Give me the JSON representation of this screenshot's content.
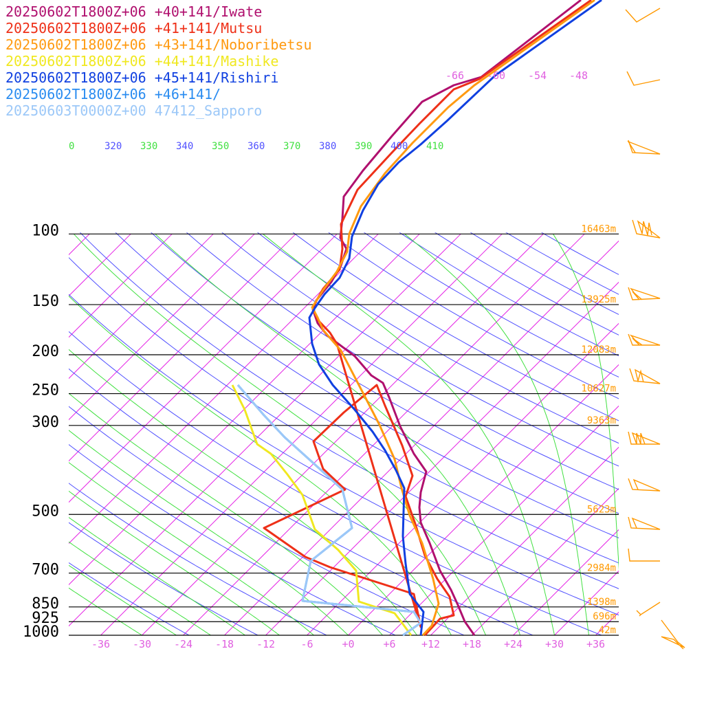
{
  "colors": {
    "isotherm": "#e000e0",
    "dry_adiabat": "#5050ff",
    "moist_adiabat": "#40e040",
    "height_label": "#ff9900",
    "wind_barb": "#ff9900",
    "temp_tick": "#e060e0",
    "isobar": "#000000"
  },
  "chart_data": {
    "type": "line",
    "title": "",
    "xlabel": "",
    "ylabel": "",
    "x_tick_labels": [
      "-36",
      "-30",
      "-24",
      "-18",
      "-12",
      "-6",
      "+0",
      "+6",
      "+12",
      "+18",
      "+24",
      "+30",
      "+36"
    ],
    "x_tick_values": [
      -36,
      -30,
      -24,
      -18,
      -12,
      -6,
      0,
      6,
      12,
      18,
      24,
      30,
      36
    ],
    "pressure_levels": [
      {
        "p": 100,
        "label": "100",
        "height": "16463m"
      },
      {
        "p": 150,
        "label": "150",
        "height": "13925m"
      },
      {
        "p": 200,
        "label": "200",
        "height": "12083m"
      },
      {
        "p": 250,
        "label": "250",
        "height": "10627m"
      },
      {
        "p": 300,
        "label": "300",
        "height": "9363m"
      },
      {
        "p": 500,
        "label": "500",
        "height": "5623m"
      },
      {
        "p": 700,
        "label": "700",
        "height": "2984m"
      },
      {
        "p": 850,
        "label": "850",
        "height": "1398m"
      },
      {
        "p": 925,
        "label": "925",
        "height": "696m"
      },
      {
        "p": 1000,
        "label": "1000",
        "height": "42m"
      }
    ],
    "theta_labels": [
      {
        "text": "0",
        "color": "#40e040"
      },
      {
        "text": "320",
        "color": "#5050ff"
      },
      {
        "text": "330",
        "color": "#40e040"
      },
      {
        "text": "340",
        "color": "#5050ff"
      },
      {
        "text": "350",
        "color": "#40e040"
      },
      {
        "text": "360",
        "color": "#5050ff"
      },
      {
        "text": "370",
        "color": "#40e040"
      },
      {
        "text": "380",
        "color": "#5050ff"
      },
      {
        "text": "390",
        "color": "#40e040"
      },
      {
        "text": "400",
        "color": "#5050ff"
      },
      {
        "text": "410",
        "color": "#40e040"
      }
    ],
    "upper_isotherm_labels": [
      "-66",
      "-60",
      "-54",
      "-48"
    ],
    "legend": [
      {
        "text": "20250602T1800Z+06 +40+141/Iwate",
        "color": "#b0106e"
      },
      {
        "text": "20250602T1800Z+06 +41+141/Mutsu",
        "color": "#ee3018"
      },
      {
        "text": "20250602T1800Z+06 +43+141/Noboribetsu",
        "color": "#ff9a10"
      },
      {
        "text": "20250602T1800Z+06 +44+141/Mashike",
        "color": "#f0e820"
      },
      {
        "text": "20250602T1800Z+06 +45+141/Rishiri",
        "color": "#1040e0"
      },
      {
        "text": "20250602T1800Z+06 +46+141/",
        "color": "#2a8cf0"
      },
      {
        "text": "20250603T0000Z+00 47412_Sapporo",
        "color": "#9cc8f8"
      }
    ],
    "series": [
      {
        "name": "20250602T1800Z+06 +40+141/Iwate",
        "color": "#b0106e",
        "points": [
          [
            1000,
            18.6
          ],
          [
            950,
            16.5
          ],
          [
            925,
            16
          ],
          [
            900,
            15
          ],
          [
            850,
            13.5
          ],
          [
            800,
            11.8
          ],
          [
            700,
            10
          ],
          [
            600,
            9
          ],
          [
            550,
            9
          ],
          [
            500,
            9.3
          ],
          [
            450,
            9.2
          ],
          [
            420,
            5
          ],
          [
            400,
            -0.8
          ],
          [
            350,
            -3
          ],
          [
            330,
            -2
          ],
          [
            300,
            -2
          ],
          [
            280,
            -3
          ],
          [
            250,
            -6
          ],
          [
            220,
            -10
          ],
          [
            200,
            -9
          ],
          [
            175,
            -8
          ],
          [
            160,
            -9
          ],
          [
            150,
            -11
          ],
          [
            135,
            -13
          ],
          [
            120,
            -15
          ],
          [
            110,
            -22
          ]
        ]
      },
      {
        "name": "20250602T1800Z+06 +41+141/Mutsu",
        "color": "#ee3018"
      },
      {
        "name": "20250602T1800Z+06 +43+141/Noboribetsu",
        "color": "#ff9a10"
      },
      {
        "name": "20250602T1800Z+06 +44+141/Mashike",
        "color": "#f0e820"
      },
      {
        "name": "20250602T1800Z+06 +45+141/Rishiri",
        "color": "#1040e0"
      },
      {
        "name": "20250602T1800Z+06 +46+141/",
        "color": "#2a8cf0"
      },
      {
        "name": "20250603T0000Z+00 47412_Sapporo",
        "color": "#9cc8f8"
      }
    ]
  }
}
